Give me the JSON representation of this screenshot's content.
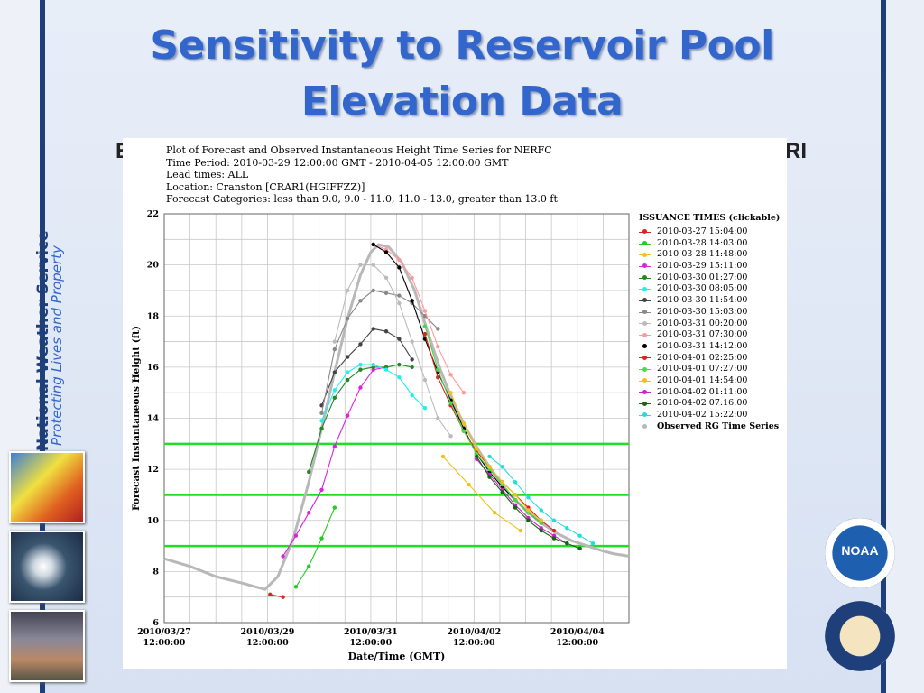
{
  "slide": {
    "title_line1": "Sensitivity to Reservoir Pool",
    "title_line2": "Elevation Data",
    "subtitle_left": "E",
    "subtitle_right": "RI",
    "org_name": "National Weather Service",
    "tagline": "Protecting Lives and Property",
    "noaa_label": "NOAA"
  },
  "chart_data": {
    "type": "line",
    "header": [
      "Plot of Forecast and Observed Instantaneous Height Time Series for NERFC",
      "Time Period: 2010-03-29 12:00:00 GMT - 2010-04-05 12:00:00 GMT",
      "Lead times: ALL",
      "Location: Cranston [CRAR1(HGIFFZZ)]",
      "Forecast Categories: less than 9.0, 9.0 - 11.0, 11.0 - 13.0, greater than 13.0 ft"
    ],
    "ylabel": "Forecast Instantaneous Height (ft)",
    "xlabel": "Date/Time (GMT)",
    "ylim": [
      6,
      22
    ],
    "yticks": [
      6,
      8,
      10,
      12,
      14,
      16,
      18,
      20,
      22
    ],
    "xlim": [
      0,
      9
    ],
    "xticks": [
      {
        "x": 0,
        "line1": "2010/03/27",
        "line2": "12:00:00"
      },
      {
        "x": 2,
        "line1": "2010/03/29",
        "line2": "12:00:00"
      },
      {
        "x": 4,
        "line1": "2010/03/31",
        "line2": "12:00:00"
      },
      {
        "x": 6,
        "line1": "2010/04/02",
        "line2": "12:00:00"
      },
      {
        "x": 8,
        "line1": "2010/04/04",
        "line2": "12:00:00"
      }
    ],
    "thresholds": [
      9,
      11,
      13
    ],
    "threshold_color": "#22dd22",
    "legend_title": "ISSUANCE TIMES (clickable)",
    "series": [
      {
        "name": "2010-03-27 15:04:00",
        "color": "#dd2222",
        "points": [
          [
            2.05,
            7.1
          ],
          [
            2.3,
            7.0
          ]
        ]
      },
      {
        "name": "2010-03-28 14:03:00",
        "color": "#22cc22",
        "points": [
          [
            2.55,
            7.4
          ],
          [
            2.8,
            8.2
          ],
          [
            3.05,
            9.3
          ],
          [
            3.3,
            10.5
          ]
        ]
      },
      {
        "name": "2010-03-28 14:48:00",
        "color": "#f0c020",
        "points": [
          [
            5.4,
            12.5
          ],
          [
            5.9,
            11.4
          ],
          [
            6.4,
            10.3
          ],
          [
            6.9,
            9.6
          ]
        ]
      },
      {
        "name": "2010-03-29 15:11:00",
        "color": "#dd22dd",
        "points": [
          [
            2.3,
            8.6
          ],
          [
            2.55,
            9.4
          ],
          [
            2.8,
            10.3
          ],
          [
            3.05,
            11.2
          ],
          [
            3.3,
            12.9
          ],
          [
            3.55,
            14.1
          ],
          [
            3.8,
            15.2
          ],
          [
            4.05,
            15.9
          ],
          [
            4.3,
            16.0
          ]
        ]
      },
      {
        "name": "2010-03-30 01:27:00",
        "color": "#228822",
        "points": [
          [
            2.8,
            11.9
          ],
          [
            3.05,
            13.6
          ],
          [
            3.3,
            14.8
          ],
          [
            3.55,
            15.5
          ],
          [
            3.8,
            15.9
          ],
          [
            4.05,
            16.0
          ],
          [
            4.3,
            16.0
          ],
          [
            4.55,
            16.1
          ],
          [
            4.8,
            16.0
          ]
        ]
      },
      {
        "name": "2010-03-30 08:05:00",
        "color": "#22eeee",
        "points": [
          [
            3.05,
            13.9
          ],
          [
            3.3,
            15.1
          ],
          [
            3.55,
            15.8
          ],
          [
            3.8,
            16.1
          ],
          [
            4.05,
            16.1
          ],
          [
            4.3,
            15.9
          ],
          [
            4.55,
            15.6
          ],
          [
            4.8,
            14.9
          ],
          [
            5.05,
            14.4
          ]
        ]
      },
      {
        "name": "2010-03-30 11:54:00",
        "color": "#444444",
        "points": [
          [
            3.05,
            14.5
          ],
          [
            3.3,
            15.8
          ],
          [
            3.55,
            16.4
          ],
          [
            3.8,
            16.9
          ],
          [
            4.05,
            17.5
          ],
          [
            4.3,
            17.4
          ],
          [
            4.55,
            17.1
          ],
          [
            4.8,
            16.3
          ]
        ]
      },
      {
        "name": "2010-03-30 15:03:00",
        "color": "#888888",
        "points": [
          [
            3.05,
            14.2
          ],
          [
            3.3,
            16.7
          ],
          [
            3.55,
            17.9
          ],
          [
            3.8,
            18.6
          ],
          [
            4.05,
            19.0
          ],
          [
            4.3,
            18.9
          ],
          [
            4.55,
            18.8
          ],
          [
            4.8,
            18.5
          ],
          [
            5.05,
            18.0
          ],
          [
            5.3,
            17.5
          ]
        ]
      },
      {
        "name": "2010-03-31 00:20:00",
        "color": "#bbbbbb",
        "points": [
          [
            3.3,
            17.0
          ],
          [
            3.55,
            19.0
          ],
          [
            3.8,
            20.0
          ],
          [
            4.05,
            20.0
          ],
          [
            4.3,
            19.5
          ],
          [
            4.55,
            18.5
          ],
          [
            4.8,
            17.0
          ],
          [
            5.05,
            15.5
          ],
          [
            5.3,
            14.0
          ],
          [
            5.55,
            13.3
          ]
        ]
      },
      {
        "name": "2010-03-31 07:30:00",
        "color": "#ff9999",
        "points": [
          [
            4.05,
            20.8
          ],
          [
            4.3,
            20.6
          ],
          [
            4.55,
            20.2
          ],
          [
            4.8,
            19.5
          ],
          [
            5.05,
            18.2
          ],
          [
            5.3,
            16.8
          ],
          [
            5.55,
            15.7
          ],
          [
            5.8,
            15.0
          ]
        ]
      },
      {
        "name": "2010-03-31 14:12:00",
        "color": "#000000",
        "points": [
          [
            4.05,
            20.8
          ],
          [
            4.3,
            20.5
          ],
          [
            4.55,
            19.9
          ],
          [
            4.8,
            18.6
          ],
          [
            5.05,
            17.1
          ],
          [
            5.3,
            15.8
          ],
          [
            5.55,
            14.7
          ],
          [
            5.8,
            13.6
          ],
          [
            6.05,
            12.6
          ],
          [
            6.3,
            11.9
          ],
          [
            6.55,
            11.3
          ],
          [
            6.8,
            10.8
          ],
          [
            7.05,
            10.3
          ],
          [
            7.3,
            9.9
          ]
        ]
      },
      {
        "name": "2010-04-01 02:25:00",
        "color": "#dd2222",
        "points": [
          [
            5.05,
            17.3
          ],
          [
            5.3,
            15.6
          ],
          [
            5.55,
            14.5
          ],
          [
            5.8,
            13.5
          ],
          [
            6.05,
            12.7
          ],
          [
            6.3,
            12.1
          ],
          [
            6.55,
            11.5
          ],
          [
            6.8,
            11.0
          ],
          [
            7.05,
            10.5
          ],
          [
            7.3,
            10.0
          ],
          [
            7.55,
            9.6
          ]
        ]
      },
      {
        "name": "2010-04-01 07:27:00",
        "color": "#44dd44",
        "points": [
          [
            5.05,
            17.6
          ],
          [
            5.3,
            15.9
          ],
          [
            5.55,
            14.6
          ],
          [
            5.8,
            13.5
          ],
          [
            6.05,
            12.6
          ],
          [
            6.3,
            12.0
          ],
          [
            6.55,
            11.4
          ],
          [
            6.8,
            10.8
          ],
          [
            7.05,
            10.3
          ],
          [
            7.3,
            9.9
          ]
        ]
      },
      {
        "name": "2010-04-01 14:54:00",
        "color": "#f0c020",
        "points": [
          [
            5.55,
            15.0
          ],
          [
            5.8,
            13.8
          ],
          [
            6.05,
            12.8
          ],
          [
            6.3,
            12.1
          ],
          [
            6.55,
            11.5
          ],
          [
            6.8,
            11.0
          ],
          [
            7.05,
            10.4
          ],
          [
            7.3,
            10.0
          ]
        ]
      },
      {
        "name": "2010-04-02 01:11:00",
        "color": "#cc22cc",
        "points": [
          [
            6.05,
            12.4
          ],
          [
            6.3,
            11.8
          ],
          [
            6.55,
            11.2
          ],
          [
            6.8,
            10.6
          ],
          [
            7.05,
            10.1
          ],
          [
            7.3,
            9.7
          ],
          [
            7.55,
            9.4
          ],
          [
            7.8,
            9.1
          ]
        ]
      },
      {
        "name": "2010-04-02 07:16:00",
        "color": "#116611",
        "points": [
          [
            6.05,
            12.5
          ],
          [
            6.3,
            11.7
          ],
          [
            6.55,
            11.1
          ],
          [
            6.8,
            10.5
          ],
          [
            7.05,
            10.0
          ],
          [
            7.3,
            9.6
          ],
          [
            7.55,
            9.3
          ],
          [
            7.8,
            9.1
          ],
          [
            8.05,
            8.9
          ]
        ]
      },
      {
        "name": "2010-04-02 15:22:00",
        "color": "#22dddd",
        "points": [
          [
            6.3,
            12.5
          ],
          [
            6.55,
            12.1
          ],
          [
            6.8,
            11.5
          ],
          [
            7.05,
            10.9
          ],
          [
            7.3,
            10.4
          ],
          [
            7.55,
            10.0
          ],
          [
            7.8,
            9.7
          ],
          [
            8.05,
            9.4
          ],
          [
            8.3,
            9.1
          ]
        ]
      },
      {
        "name": "Observed RG Time Series",
        "color": "#b8b8b8",
        "observed": true,
        "points": [
          [
            0.0,
            8.5
          ],
          [
            0.5,
            8.2
          ],
          [
            1.0,
            7.8
          ],
          [
            1.5,
            7.55
          ],
          [
            1.95,
            7.3
          ],
          [
            2.2,
            7.8
          ],
          [
            2.5,
            9.3
          ],
          [
            2.8,
            11.5
          ],
          [
            3.05,
            13.6
          ],
          [
            3.3,
            15.8
          ],
          [
            3.55,
            17.9
          ],
          [
            3.8,
            19.6
          ],
          [
            4.0,
            20.5
          ],
          [
            4.15,
            20.8
          ],
          [
            4.35,
            20.7
          ],
          [
            4.6,
            20.1
          ],
          [
            4.85,
            19.0
          ],
          [
            5.1,
            17.4
          ],
          [
            5.35,
            15.9
          ],
          [
            5.6,
            14.6
          ],
          [
            5.85,
            13.6
          ],
          [
            6.1,
            12.7
          ],
          [
            6.4,
            11.8
          ],
          [
            6.7,
            11.0
          ],
          [
            7.0,
            10.4
          ],
          [
            7.3,
            9.9
          ],
          [
            7.6,
            9.5
          ],
          [
            7.9,
            9.2
          ],
          [
            8.2,
            9.0
          ],
          [
            8.5,
            8.8
          ],
          [
            8.7,
            8.7
          ],
          [
            9.0,
            8.6
          ]
        ]
      }
    ]
  }
}
